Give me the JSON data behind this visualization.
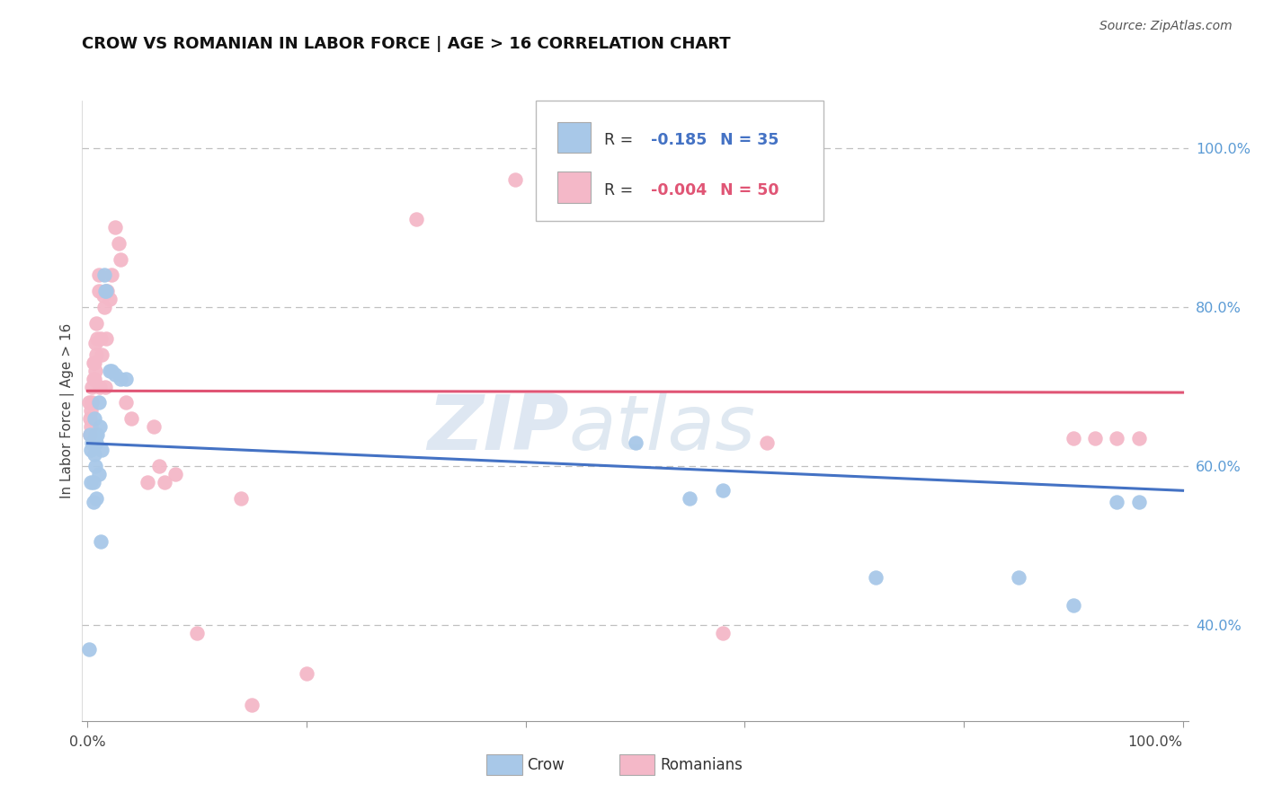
{
  "title": "CROW VS ROMANIAN IN LABOR FORCE | AGE > 16 CORRELATION CHART",
  "source": "Source: ZipAtlas.com",
  "ylabel": "In Labor Force | Age > 16",
  "ytick_labels": [
    "40.0%",
    "60.0%",
    "80.0%",
    "100.0%"
  ],
  "ytick_values": [
    0.4,
    0.6,
    0.8,
    1.0
  ],
  "xlim": [
    -0.005,
    1.005
  ],
  "ylim": [
    0.28,
    1.06
  ],
  "crow_R": -0.185,
  "crow_N": 35,
  "romanian_R": -0.004,
  "romanian_N": 50,
  "crow_color": "#a8c8e8",
  "romanian_color": "#f4b8c8",
  "crow_line_color": "#4472c4",
  "romanian_line_color": "#e05575",
  "background_color": "#ffffff",
  "crow_x": [
    0.001,
    0.002,
    0.003,
    0.003,
    0.004,
    0.005,
    0.005,
    0.006,
    0.006,
    0.007,
    0.007,
    0.008,
    0.008,
    0.009,
    0.01,
    0.01,
    0.011,
    0.012,
    0.013,
    0.015,
    0.016,
    0.017,
    0.02,
    0.022,
    0.025,
    0.03,
    0.035,
    0.5,
    0.55,
    0.58,
    0.72,
    0.85,
    0.9,
    0.94,
    0.96
  ],
  "crow_y": [
    0.37,
    0.64,
    0.62,
    0.58,
    0.63,
    0.58,
    0.555,
    0.615,
    0.66,
    0.64,
    0.6,
    0.63,
    0.56,
    0.64,
    0.59,
    0.68,
    0.65,
    0.505,
    0.62,
    0.84,
    0.82,
    0.82,
    0.72,
    0.72,
    0.715,
    0.71,
    0.71,
    0.63,
    0.56,
    0.57,
    0.46,
    0.46,
    0.425,
    0.555,
    0.555
  ],
  "romanian_x": [
    0.001,
    0.002,
    0.002,
    0.003,
    0.003,
    0.004,
    0.004,
    0.005,
    0.005,
    0.006,
    0.006,
    0.007,
    0.007,
    0.008,
    0.008,
    0.009,
    0.01,
    0.01,
    0.011,
    0.012,
    0.013,
    0.014,
    0.015,
    0.016,
    0.017,
    0.018,
    0.02,
    0.022,
    0.025,
    0.028,
    0.03,
    0.035,
    0.04,
    0.055,
    0.06,
    0.065,
    0.07,
    0.08,
    0.1,
    0.14,
    0.15,
    0.2,
    0.3,
    0.39,
    0.58,
    0.62,
    0.9,
    0.92,
    0.94,
    0.96
  ],
  "romanian_y": [
    0.68,
    0.66,
    0.64,
    0.67,
    0.65,
    0.7,
    0.68,
    0.73,
    0.71,
    0.71,
    0.73,
    0.755,
    0.72,
    0.78,
    0.74,
    0.76,
    0.82,
    0.84,
    0.7,
    0.76,
    0.74,
    0.815,
    0.8,
    0.7,
    0.76,
    0.82,
    0.81,
    0.84,
    0.9,
    0.88,
    0.86,
    0.68,
    0.66,
    0.58,
    0.65,
    0.6,
    0.58,
    0.59,
    0.39,
    0.56,
    0.3,
    0.34,
    0.91,
    0.96,
    0.39,
    0.63,
    0.635,
    0.635,
    0.635,
    0.635
  ]
}
